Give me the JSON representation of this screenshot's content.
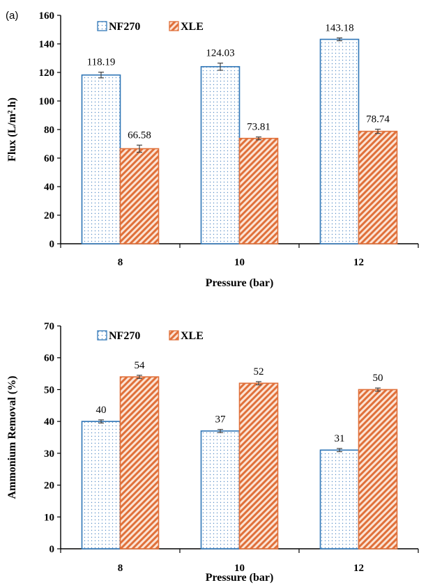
{
  "chart_data": [
    {
      "type": "bar",
      "panel_label": "(a)",
      "categories": [
        "8",
        "10",
        "12"
      ],
      "xlabel": "Pressure (bar)",
      "ylabel": "Flux (L/m².h)",
      "ylim": [
        0,
        160
      ],
      "yticks": [
        0,
        20,
        40,
        60,
        80,
        100,
        120,
        140,
        160
      ],
      "legend_position": "top-left",
      "series": [
        {
          "name": "NF270",
          "values": [
            118.19,
            124.03,
            143.18
          ],
          "errors": [
            2.0,
            2.5,
            1.0
          ],
          "labels": [
            "118.19",
            "124.03",
            "143.18"
          ],
          "color": "#2e75b6",
          "pattern": "dots"
        },
        {
          "name": "XLE",
          "values": [
            66.58,
            73.81,
            78.74
          ],
          "errors": [
            2.5,
            1.0,
            1.5
          ],
          "labels": [
            "66.58",
            "73.81",
            "78.74"
          ],
          "color": "#e0703a",
          "pattern": "diagonal"
        }
      ]
    },
    {
      "type": "bar",
      "categories": [
        "8",
        "10",
        "12"
      ],
      "xlabel": "Pressure (bar)",
      "ylabel": "Ammonium Removal (%)",
      "ylim": [
        0,
        70
      ],
      "yticks": [
        0,
        10,
        20,
        30,
        40,
        50,
        60,
        70
      ],
      "legend_position": "top-left",
      "series": [
        {
          "name": "NF270",
          "values": [
            40,
            37,
            31
          ],
          "errors": [
            0.5,
            0.5,
            0.5
          ],
          "labels": [
            "40",
            "37",
            "31"
          ],
          "color": "#2e75b6",
          "pattern": "dots"
        },
        {
          "name": "XLE",
          "values": [
            54,
            52,
            50
          ],
          "errors": [
            0.5,
            0.5,
            0.5
          ],
          "labels": [
            "54",
            "52",
            "50"
          ],
          "color": "#e0703a",
          "pattern": "diagonal"
        }
      ]
    }
  ]
}
